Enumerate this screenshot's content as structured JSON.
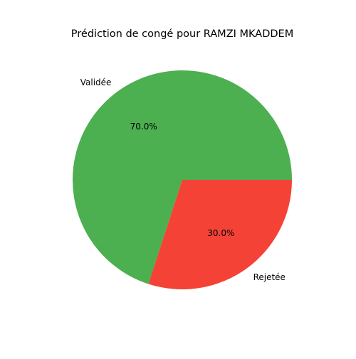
{
  "chart_data": {
    "type": "pie",
    "title": "Prédiction de congé pour RAMZI MKADDEM",
    "slices": [
      {
        "label": "Validée",
        "value": 70,
        "pct_label": "70.0%",
        "color": "#4caf50"
      },
      {
        "label": "Rejetée",
        "value": 30,
        "pct_label": "30.0%",
        "color": "#f44336"
      }
    ],
    "start_angle_deg": 0,
    "direction": "counterclockwise",
    "legend": "none"
  }
}
